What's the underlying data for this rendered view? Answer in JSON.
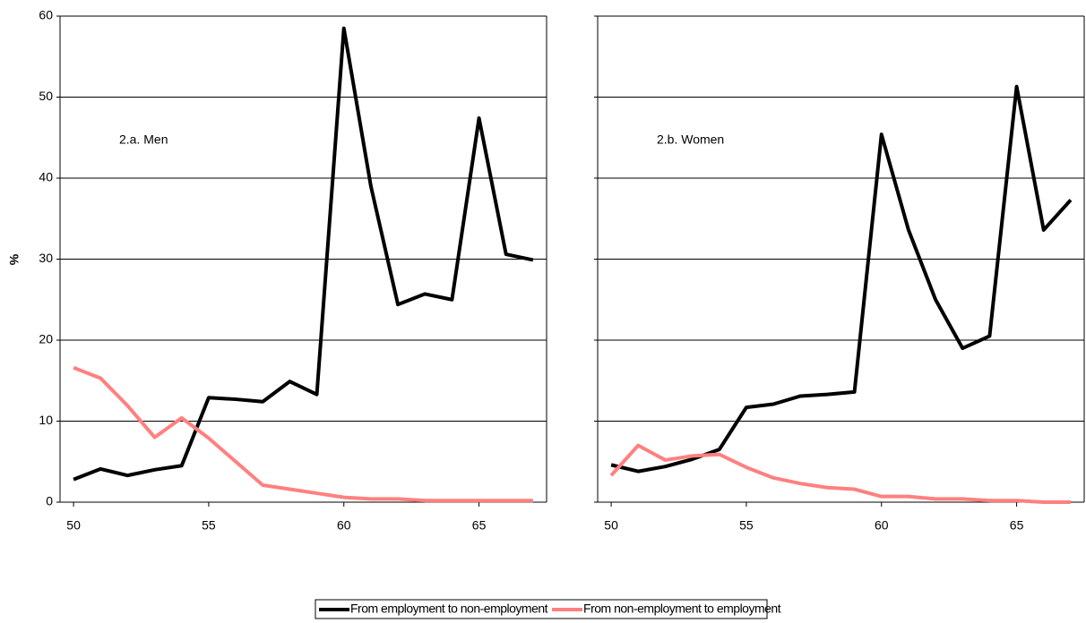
{
  "chart_data": [
    {
      "type": "line",
      "y_label": "%",
      "annotation": "2.a. Men",
      "x": [
        50,
        51,
        52,
        53,
        54,
        55,
        56,
        57,
        58,
        59,
        60,
        61,
        62,
        63,
        64,
        65,
        66,
        67
      ],
      "series": [
        {
          "name": "From employment to non-employment",
          "color": "#000000",
          "values": [
            2.8,
            4.1,
            3.3,
            4.0,
            4.5,
            12.9,
            12.7,
            12.4,
            14.9,
            13.3,
            58.5,
            39,
            24.4,
            25.7,
            25.0,
            47.4,
            30.6,
            29.9
          ]
        },
        {
          "name": "From non-employment to employment",
          "color": "#ff8080",
          "values": [
            16.6,
            15.3,
            11.9,
            8.0,
            10.4,
            7.9,
            5.0,
            2.1,
            1.6,
            1.1,
            0.6,
            0.4,
            0.4,
            0.2,
            0.2,
            0.2,
            0.2,
            0.2
          ]
        }
      ],
      "xlim": [
        49.5,
        67.5
      ],
      "xticks": [
        50,
        55,
        60,
        65
      ],
      "ylim": [
        0,
        60
      ],
      "yticks": [
        0,
        10,
        20,
        30,
        40,
        50,
        60
      ],
      "grid": true
    },
    {
      "type": "line",
      "annotation": "2.b. Women",
      "x": [
        50,
        51,
        52,
        53,
        54,
        55,
        56,
        57,
        58,
        59,
        60,
        61,
        62,
        63,
        64,
        65,
        66,
        67
      ],
      "series": [
        {
          "color": "#000000",
          "values": [
            4.6,
            3.8,
            4.4,
            5.3,
            6.5,
            11.7,
            12.1,
            13.1,
            13.3,
            13.6,
            45.4,
            33.6,
            25.0,
            19.0,
            20.5,
            51.3,
            33.6,
            37.3
          ]
        },
        {
          "color": "#ff8080",
          "values": [
            3.3,
            7.0,
            5.2,
            5.7,
            5.9,
            4.3,
            3.0,
            2.3,
            1.8,
            1.6,
            0.7,
            0.7,
            0.4,
            0.4,
            0.2,
            0.2,
            0.0,
            0.0
          ]
        }
      ],
      "xlim": [
        49.5,
        67.5
      ],
      "xticks": [
        50,
        55,
        60,
        65
      ],
      "ylim": [
        0,
        60
      ],
      "yticks": [
        0,
        10,
        20,
        30,
        40,
        50,
        60
      ],
      "grid": true
    }
  ]
}
